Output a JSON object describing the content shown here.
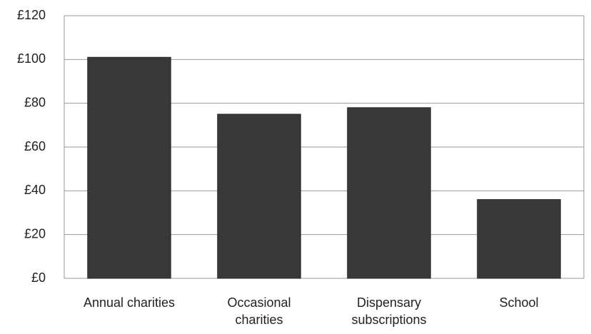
{
  "chart_data": {
    "type": "bar",
    "categories": [
      "Annual charities",
      "Occasional charities",
      "Dispensary subscriptions",
      "School"
    ],
    "values": [
      101,
      75,
      78,
      36
    ],
    "color": "#383838",
    "ylim": [
      0,
      120
    ],
    "yticks": [
      {
        "value": 0,
        "label": "£0"
      },
      {
        "value": 20,
        "label": "£20"
      },
      {
        "value": 40,
        "label": "£40"
      },
      {
        "value": 60,
        "label": "£60"
      },
      {
        "value": 80,
        "label": "£80"
      },
      {
        "value": 100,
        "label": "£100"
      },
      {
        "value": 120,
        "label": "£120"
      }
    ],
    "grid": true
  }
}
